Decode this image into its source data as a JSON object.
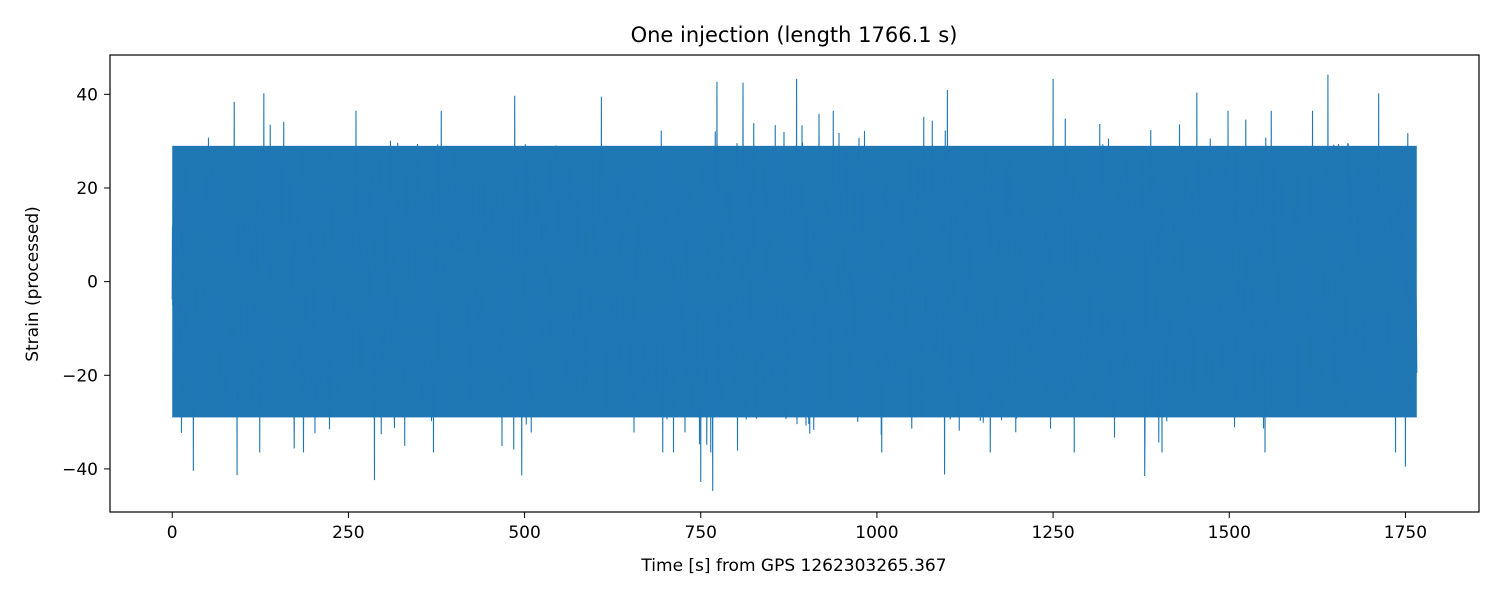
{
  "chart_data": {
    "type": "line",
    "title": "One injection (length 1766.1 s)",
    "xlabel": "Time [s] from GPS 1262303265.367",
    "ylabel": "Strain (processed)",
    "xlim": [
      -88.3,
      1854.4
    ],
    "ylim": [
      -49.2,
      48.4
    ],
    "x_ticks": [
      0,
      250,
      500,
      750,
      1000,
      1250,
      1500,
      1750
    ],
    "x_tick_labels": [
      "0",
      "250",
      "500",
      "750",
      "1000",
      "1250",
      "1500",
      "1750"
    ],
    "y_ticks": [
      -40,
      -20,
      0,
      20,
      40
    ],
    "y_tick_labels": [
      "−40",
      "−20",
      "0",
      "20",
      "40"
    ],
    "grid": false,
    "legend": "none",
    "color": "#1f77b4",
    "series": [
      {
        "x_range": [
          0,
          1766.1
        ],
        "envelope_typical": [
          -32,
          32
        ],
        "peaks": [
          {
            "x": 88,
            "y": 38.4
          },
          {
            "x": 130,
            "y": 40.2
          },
          {
            "x": 486,
            "y": 39.7
          },
          {
            "x": 609,
            "y": 39.5
          },
          {
            "x": 773,
            "y": 42.7
          },
          {
            "x": 810,
            "y": 42.5
          },
          {
            "x": 886,
            "y": 43.3
          },
          {
            "x": 1100,
            "y": 40.9
          },
          {
            "x": 1250,
            "y": 43.3
          },
          {
            "x": 1454,
            "y": 40.4
          },
          {
            "x": 1640,
            "y": 44.2
          },
          {
            "x": 1712,
            "y": 40.2
          }
        ],
        "troughs": [
          {
            "x": 30,
            "y": -40.4
          },
          {
            "x": 92,
            "y": -41.3
          },
          {
            "x": 287,
            "y": -42.4
          },
          {
            "x": 496,
            "y": -41.4
          },
          {
            "x": 750,
            "y": -42.8
          },
          {
            "x": 767,
            "y": -44.7
          },
          {
            "x": 1096,
            "y": -41.2
          },
          {
            "x": 1380,
            "y": -41.5
          },
          {
            "x": 1750,
            "y": -39.5
          }
        ]
      }
    ]
  }
}
